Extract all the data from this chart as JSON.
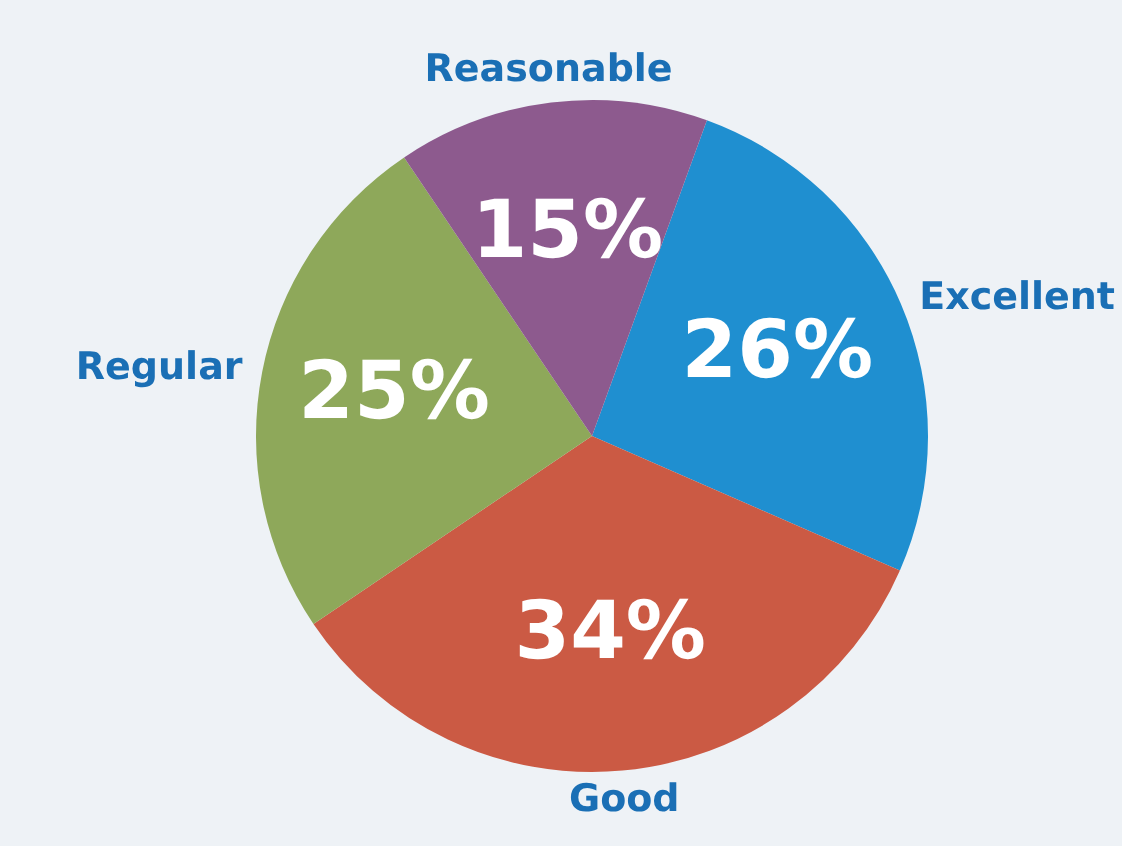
{
  "chart_data": {
    "type": "pie",
    "categories": [
      "Excellent",
      "Good",
      "Regular",
      "Reasonable"
    ],
    "values": [
      26,
      34,
      25,
      15
    ],
    "colors": [
      "#1f8fd0",
      "#cb5a44",
      "#8ea85a",
      "#8d5a8e"
    ],
    "value_labels": [
      "26%",
      "34%",
      "25%",
      "15%"
    ],
    "legend": false
  }
}
